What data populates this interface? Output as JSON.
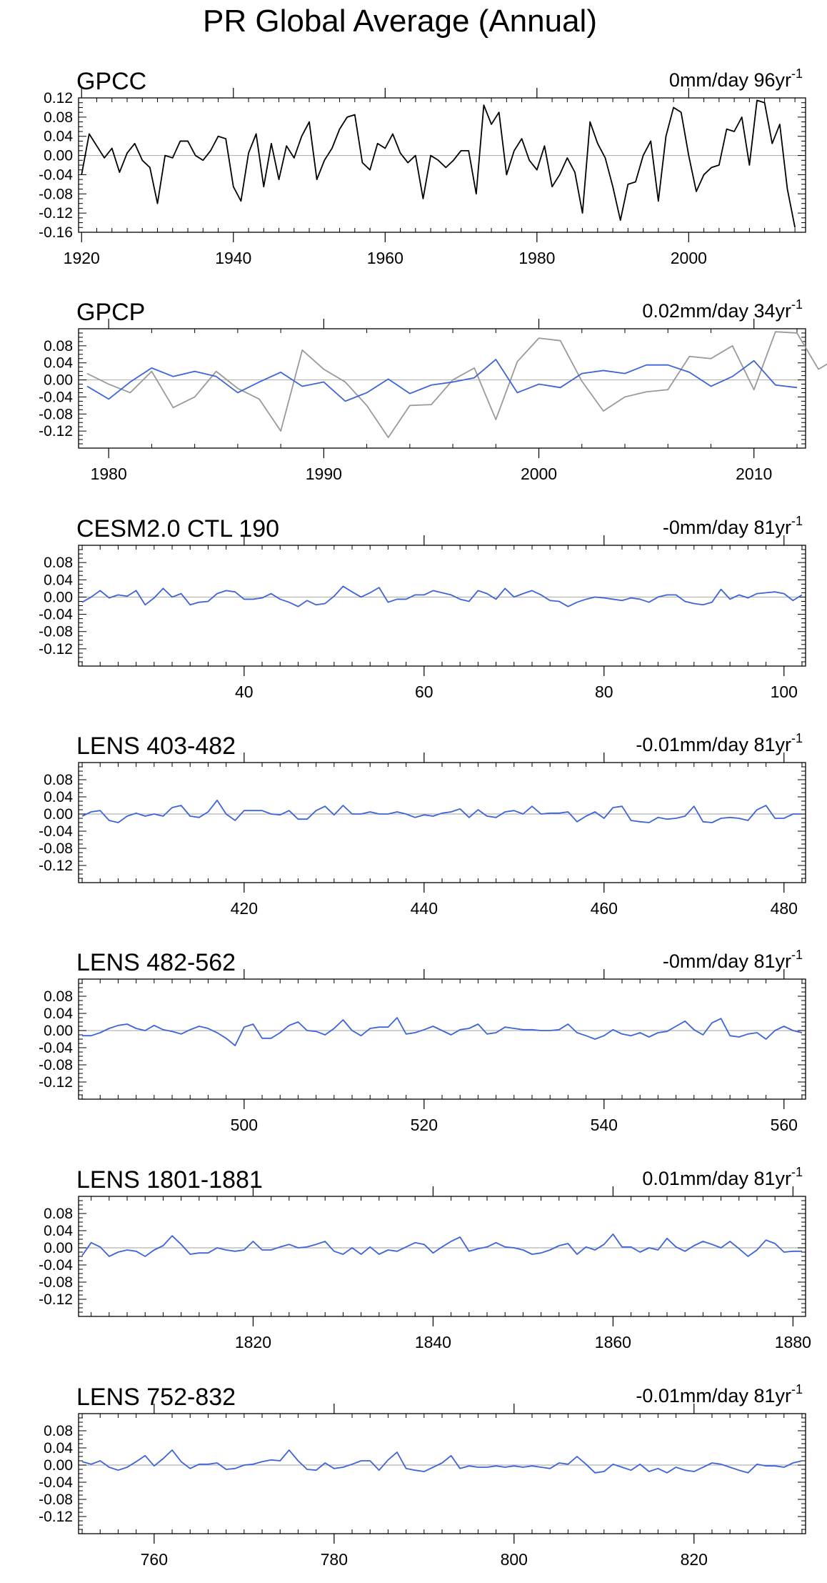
{
  "title": "PR Global Average (Annual)",
  "chart_data": [
    {
      "type": "line",
      "title": "GPCC",
      "trend": "0mm/day 96yr",
      "trend_sup": "-1",
      "xlim": [
        1919.6,
        2015.4
      ],
      "ylim": [
        -0.16,
        0.12
      ],
      "yticks": [
        0.12,
        0.08,
        0.04,
        0.0,
        -0.04,
        -0.08,
        -0.12,
        -0.16
      ],
      "ytick_labels": [
        "0.12",
        "0.08",
        "0.04",
        "0.00",
        "-0.04",
        "-0.08",
        "-0.12",
        "-0.16"
      ],
      "xticks": [
        1920,
        1940,
        1960,
        1980,
        2000
      ],
      "series": [
        {
          "color": "#000000",
          "x0": 1920,
          "values": [
            -0.04,
            0.045,
            0.02,
            -0.005,
            0.015,
            -0.035,
            0.005,
            0.025,
            -0.01,
            -0.025,
            -0.1,
            0.0,
            -0.005,
            0.03,
            0.03,
            0.0,
            -0.01,
            0.01,
            0.04,
            0.035,
            -0.065,
            -0.095,
            0.005,
            0.045,
            -0.065,
            0.025,
            -0.05,
            0.02,
            -0.005,
            0.04,
            0.07,
            -0.05,
            -0.01,
            0.015,
            0.055,
            0.08,
            0.085,
            -0.015,
            -0.03,
            0.025,
            0.015,
            0.045,
            0.005,
            -0.015,
            0.0,
            -0.09,
            0.0,
            -0.01,
            -0.025,
            -0.01,
            0.01,
            0.01,
            -0.08,
            0.105,
            0.065,
            0.09,
            -0.04,
            0.01,
            0.035,
            -0.01,
            -0.03,
            0.02,
            -0.065,
            -0.04,
            -0.005,
            -0.035,
            -0.12,
            0.07,
            0.025,
            -0.005,
            -0.065,
            -0.135,
            -0.06,
            -0.055,
            0.0,
            0.03,
            -0.095,
            0.04,
            0.1,
            0.09,
            0.0,
            -0.075,
            -0.04,
            -0.025,
            -0.02,
            0.055,
            0.05,
            0.08,
            -0.02,
            0.115,
            0.11,
            0.025,
            0.065,
            -0.07,
            -0.15
          ]
        }
      ]
    },
    {
      "type": "line",
      "title": "GPCP",
      "trend": "0.02mm/day 34yr",
      "trend_sup": "-1",
      "xlim": [
        1978.6,
        2012.4
      ],
      "ylim": [
        -0.16,
        0.12
      ],
      "yticks": [
        0.08,
        0.04,
        0.0,
        -0.04,
        -0.08,
        -0.12
      ],
      "ytick_labels": [
        "0.08",
        "0.04",
        "0.00",
        "-0.04",
        "-0.08",
        "-0.12"
      ],
      "xticks": [
        1980,
        1990,
        2000,
        2010
      ],
      "series": [
        {
          "color": "#999999",
          "x0": 1979,
          "values": [
            0.015,
            -0.01,
            -0.03,
            0.02,
            -0.065,
            -0.04,
            0.02,
            -0.02,
            -0.045,
            -0.12,
            0.07,
            0.025,
            -0.005,
            -0.06,
            -0.135,
            -0.06,
            -0.058,
            0.0,
            0.028,
            -0.093,
            0.043,
            0.098,
            0.092,
            -0.003,
            -0.073,
            -0.04,
            -0.028,
            -0.023,
            0.055,
            0.05,
            0.08,
            -0.023,
            0.113,
            0.11,
            0.025,
            0.055
          ]
        },
        {
          "color": "#3d64d9",
          "x0": 1979,
          "values": [
            -0.015,
            -0.045,
            -0.005,
            0.028,
            0.008,
            0.02,
            0.008,
            -0.03,
            -0.005,
            0.018,
            -0.015,
            -0.005,
            -0.05,
            -0.03,
            0.002,
            -0.032,
            -0.012,
            -0.005,
            0.005,
            0.048,
            -0.03,
            -0.01,
            -0.018,
            0.015,
            0.022,
            0.015,
            0.035,
            0.035,
            0.018,
            -0.015,
            0.008,
            0.045,
            -0.012,
            -0.018
          ]
        }
      ]
    },
    {
      "type": "line",
      "title": "CESM2.0 CTL 190",
      "trend": "-0mm/day 81yr",
      "trend_sup": "-1",
      "xlim": [
        21.6,
        102.4
      ],
      "ylim": [
        -0.16,
        0.12
      ],
      "yticks": [
        0.08,
        0.04,
        0.0,
        -0.04,
        -0.08,
        -0.12
      ],
      "ytick_labels": [
        "0.08",
        "0.04",
        "0.00",
        "-0.04",
        "-0.08",
        "-0.12"
      ],
      "xticks": [
        40,
        60,
        80,
        100
      ],
      "series": [
        {
          "color": "#3d64d9",
          "x0": 22,
          "values": [
            -0.012,
            0.0,
            0.015,
            -0.002,
            0.005,
            0.002,
            0.015,
            -0.018,
            -0.002,
            0.02,
            0.0,
            0.008,
            -0.018,
            -0.012,
            -0.01,
            0.008,
            0.015,
            0.012,
            -0.005,
            -0.005,
            -0.002,
            0.008,
            -0.005,
            -0.012,
            -0.022,
            -0.008,
            -0.018,
            -0.015,
            0.002,
            0.025,
            0.012,
            0.0,
            0.01,
            0.022,
            -0.012,
            -0.005,
            -0.005,
            0.005,
            0.005,
            0.015,
            0.01,
            0.005,
            -0.005,
            -0.01,
            0.015,
            0.008,
            -0.005,
            0.02,
            0.0,
            0.008,
            0.015,
            0.005,
            -0.008,
            -0.01,
            -0.022,
            -0.012,
            -0.005,
            0.0,
            -0.002,
            -0.005,
            -0.008,
            -0.002,
            -0.005,
            -0.012,
            0.0,
            0.005,
            0.005,
            -0.01,
            -0.015,
            -0.018,
            -0.012,
            0.018,
            -0.005,
            0.005,
            -0.002,
            0.008,
            0.01,
            0.012,
            0.008,
            -0.008,
            0.005
          ]
        }
      ]
    },
    {
      "type": "line",
      "title": "LENS 403-482",
      "trend": "-0.01mm/day 81yr",
      "trend_sup": "-1",
      "xlim": [
        401.6,
        482.4
      ],
      "ylim": [
        -0.16,
        0.12
      ],
      "yticks": [
        0.08,
        0.04,
        0.0,
        -0.04,
        -0.08,
        -0.12
      ],
      "ytick_labels": [
        "0.08",
        "0.04",
        "0.00",
        "-0.04",
        "-0.08",
        "-0.12"
      ],
      "xticks": [
        420,
        440,
        460,
        480
      ],
      "series": [
        {
          "color": "#3d64d9",
          "x0": 402,
          "values": [
            -0.005,
            0.005,
            0.008,
            -0.015,
            -0.02,
            -0.005,
            0.002,
            -0.005,
            0.0,
            -0.005,
            0.015,
            0.02,
            -0.005,
            -0.008,
            0.005,
            0.032,
            0.0,
            -0.015,
            0.008,
            0.008,
            0.008,
            0.0,
            -0.002,
            0.008,
            -0.012,
            -0.012,
            0.008,
            0.018,
            -0.002,
            0.02,
            0.0,
            0.0,
            0.005,
            0.0,
            0.0,
            0.005,
            0.0,
            -0.008,
            -0.002,
            -0.005,
            0.002,
            0.005,
            0.012,
            -0.008,
            0.01,
            -0.005,
            -0.008,
            0.005,
            0.008,
            0.0,
            0.018,
            0.0,
            0.002,
            0.002,
            0.005,
            -0.018,
            -0.005,
            0.005,
            -0.01,
            0.015,
            0.018,
            -0.015,
            -0.018,
            -0.02,
            -0.008,
            -0.012,
            -0.01,
            -0.005,
            0.018,
            -0.018,
            -0.02,
            -0.01,
            -0.008,
            -0.01,
            -0.015,
            0.01,
            0.02,
            -0.01,
            -0.01,
            0.0,
            0.0
          ]
        }
      ]
    },
    {
      "type": "line",
      "title": "LENS 482-562",
      "trend": "-0mm/day 81yr",
      "trend_sup": "-1",
      "xlim": [
        481.6,
        562.4
      ],
      "ylim": [
        -0.16,
        0.12
      ],
      "yticks": [
        0.08,
        0.04,
        0.0,
        -0.04,
        -0.08,
        -0.12
      ],
      "ytick_labels": [
        "0.08",
        "0.04",
        "0.00",
        "-0.04",
        "-0.08",
        "-0.12"
      ],
      "xticks": [
        500,
        520,
        540,
        560
      ],
      "series": [
        {
          "color": "#3d64d9",
          "x0": 482,
          "values": [
            -0.012,
            -0.012,
            -0.005,
            0.005,
            0.012,
            0.015,
            0.005,
            0.0,
            0.012,
            0.002,
            -0.002,
            -0.008,
            0.002,
            0.01,
            0.005,
            -0.005,
            -0.018,
            -0.035,
            0.008,
            0.015,
            -0.018,
            -0.018,
            -0.005,
            0.012,
            0.02,
            0.0,
            -0.002,
            -0.01,
            0.005,
            0.025,
            0.0,
            -0.012,
            0.005,
            0.008,
            0.008,
            0.03,
            -0.008,
            -0.005,
            0.002,
            0.01,
            0.0,
            -0.01,
            0.002,
            0.005,
            0.015,
            -0.008,
            -0.005,
            0.008,
            0.005,
            0.002,
            0.002,
            0.0,
            0.0,
            0.002,
            0.015,
            -0.005,
            -0.012,
            -0.02,
            -0.012,
            0.002,
            -0.008,
            -0.012,
            -0.005,
            -0.015,
            -0.005,
            -0.002,
            0.01,
            0.022,
            0.002,
            -0.01,
            0.018,
            0.028,
            -0.012,
            -0.015,
            -0.008,
            -0.005,
            -0.02,
            0.0,
            0.01,
            0.0,
            -0.005
          ]
        }
      ]
    },
    {
      "type": "line",
      "title": "LENS 1801-1881",
      "trend": "0.01mm/day 81yr",
      "trend_sup": "-1",
      "xlim": [
        1800.6,
        1881.4
      ],
      "ylim": [
        -0.16,
        0.12
      ],
      "yticks": [
        0.08,
        0.04,
        0.0,
        -0.04,
        -0.08,
        -0.12
      ],
      "ytick_labels": [
        "0.08",
        "0.04",
        "0.00",
        "-0.04",
        "-0.08",
        "-0.12"
      ],
      "xticks": [
        1820,
        1840,
        1860,
        1880
      ],
      "series": [
        {
          "color": "#3d64d9",
          "x0": 1801,
          "values": [
            -0.018,
            0.012,
            0.002,
            -0.02,
            -0.01,
            -0.005,
            -0.008,
            -0.02,
            -0.005,
            0.005,
            0.028,
            0.008,
            -0.015,
            -0.012,
            -0.012,
            0.0,
            -0.005,
            -0.008,
            -0.005,
            0.015,
            -0.005,
            -0.005,
            0.002,
            0.008,
            0.0,
            0.002,
            0.008,
            0.015,
            -0.008,
            -0.015,
            0.0,
            -0.015,
            0.002,
            -0.015,
            -0.005,
            -0.008,
            0.002,
            0.012,
            0.008,
            -0.012,
            0.002,
            0.015,
            0.025,
            -0.008,
            -0.002,
            0.002,
            0.012,
            0.002,
            0.0,
            -0.005,
            -0.015,
            -0.012,
            -0.005,
            0.005,
            0.01,
            -0.015,
            0.002,
            -0.005,
            0.008,
            0.032,
            0.002,
            0.002,
            -0.01,
            0.0,
            -0.005,
            0.022,
            0.002,
            -0.008,
            0.005,
            0.015,
            0.008,
            0.0,
            0.015,
            -0.002,
            -0.02,
            -0.005,
            0.018,
            0.01,
            -0.01,
            -0.008,
            -0.008
          ]
        }
      ]
    },
    {
      "type": "line",
      "title": "LENS 752-832",
      "trend": "-0.01mm/day 81yr",
      "trend_sup": "-1",
      "xlim": [
        751.6,
        832.4
      ],
      "ylim": [
        -0.16,
        0.12
      ],
      "yticks": [
        0.08,
        0.04,
        0.0,
        -0.04,
        -0.08,
        -0.12
      ],
      "ytick_labels": [
        "0.08",
        "0.04",
        "0.00",
        "-0.04",
        "-0.08",
        "-0.12"
      ],
      "xticks": [
        760,
        780,
        800,
        820
      ],
      "series": [
        {
          "color": "#3d64d9",
          "x0": 752,
          "values": [
            0.008,
            0.002,
            0.01,
            -0.005,
            -0.012,
            -0.005,
            0.008,
            0.022,
            -0.002,
            0.015,
            0.035,
            0.008,
            -0.008,
            0.002,
            0.002,
            0.005,
            -0.01,
            -0.008,
            0.0,
            0.002,
            0.008,
            0.012,
            0.01,
            0.035,
            0.01,
            -0.01,
            -0.012,
            0.005,
            -0.008,
            -0.005,
            0.002,
            0.01,
            0.01,
            -0.012,
            0.012,
            0.03,
            -0.008,
            -0.012,
            -0.015,
            -0.005,
            0.005,
            0.022,
            -0.008,
            -0.002,
            -0.005,
            -0.005,
            -0.002,
            -0.005,
            -0.002,
            -0.005,
            -0.002,
            -0.005,
            -0.008,
            0.005,
            0.002,
            0.02,
            0.002,
            -0.018,
            -0.015,
            0.002,
            -0.005,
            -0.012,
            0.002,
            -0.015,
            -0.008,
            -0.018,
            -0.005,
            -0.012,
            -0.015,
            -0.005,
            0.005,
            0.002,
            -0.005,
            -0.012,
            -0.018,
            0.002,
            -0.002,
            -0.002,
            -0.005,
            0.005,
            0.01
          ]
        }
      ]
    }
  ]
}
